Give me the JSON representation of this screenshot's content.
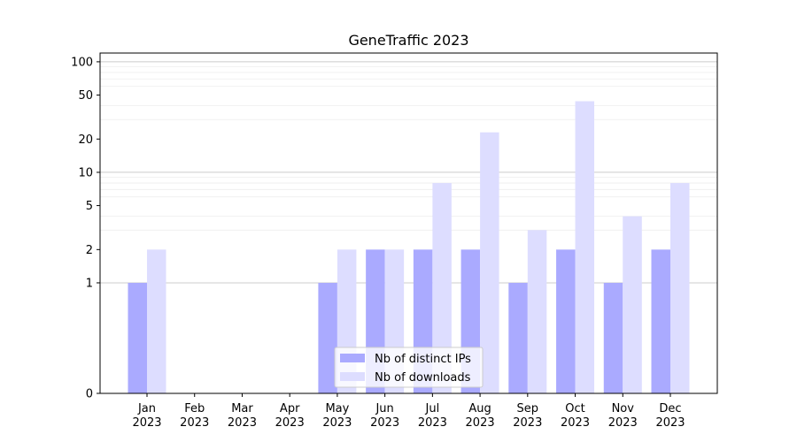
{
  "chart_data": {
    "type": "bar",
    "title": "GeneTraffic 2023",
    "xlabel": "",
    "ylabel": "",
    "categories": [
      [
        "Jan",
        "2023"
      ],
      [
        "Feb",
        "2023"
      ],
      [
        "Mar",
        "2023"
      ],
      [
        "Apr",
        "2023"
      ],
      [
        "May",
        "2023"
      ],
      [
        "Jun",
        "2023"
      ],
      [
        "Jul",
        "2023"
      ],
      [
        "Aug",
        "2023"
      ],
      [
        "Sep",
        "2023"
      ],
      [
        "Oct",
        "2023"
      ],
      [
        "Nov",
        "2023"
      ],
      [
        "Dec",
        "2023"
      ]
    ],
    "series": [
      {
        "name": "Nb of distinct IPs",
        "color": "#aaaaff",
        "values": [
          1,
          0,
          0,
          0,
          1,
          2,
          2,
          2,
          1,
          2,
          1,
          2
        ]
      },
      {
        "name": "Nb of downloads",
        "color": "#ddddff",
        "values": [
          2,
          0,
          0,
          0,
          2,
          2,
          8,
          23,
          3,
          44,
          4,
          8
        ]
      }
    ],
    "yscale": "symlog",
    "ylim": [
      0,
      120
    ],
    "yticks": [
      0,
      1,
      2,
      5,
      10,
      20,
      50,
      100
    ],
    "ytick_labels": [
      "0",
      "1",
      "2",
      "5",
      "10",
      "20",
      "50",
      "100"
    ],
    "grid": "y (major and minor)",
    "legend_position": "lower center"
  }
}
